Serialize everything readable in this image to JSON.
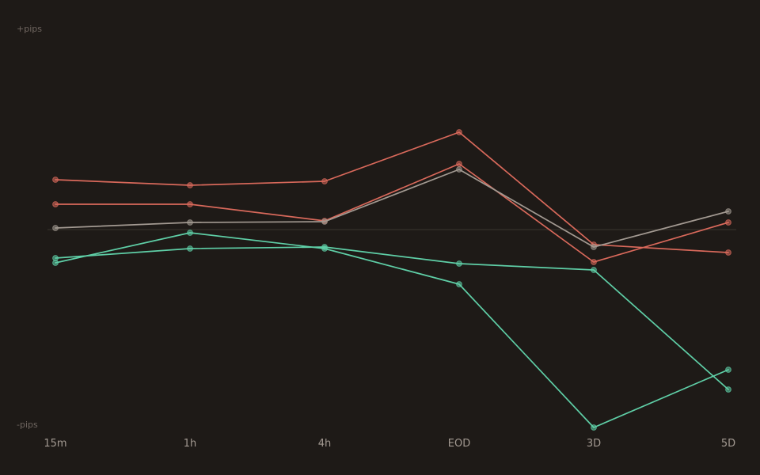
{
  "chart_data": {
    "type": "line",
    "title": "",
    "xlabel": "",
    "ylabel": "",
    "y_top_label": "+pips",
    "y_bottom_label": "-pips",
    "categories": [
      "15m",
      "1h",
      "4h",
      "EOD",
      "3D",
      "5D"
    ],
    "ylim": [
      -100,
      100
    ],
    "zero_line": 0,
    "grid": false,
    "legend": "none",
    "series": [
      {
        "color": "#d9695b",
        "values": [
          25.2,
          22.4,
          24.4,
          49.2,
          -7.6,
          -11.6
        ]
      },
      {
        "color": "#d9695b",
        "values": [
          12.8,
          12.8,
          4.4,
          33.2,
          -16.4,
          3.6
        ]
      },
      {
        "color": "#a39a92",
        "values": [
          0.8,
          3.6,
          4.0,
          30.4,
          -8.8,
          9.2
        ]
      },
      {
        "color": "#5fcfa7",
        "values": [
          -14.4,
          -9.6,
          -8.8,
          -17.2,
          -20.4,
          -80.8
        ]
      },
      {
        "color": "#5fcfa7",
        "values": [
          -16.8,
          -1.6,
          -9.6,
          -27.6,
          -100.0,
          -70.8
        ]
      }
    ],
    "colors": {
      "background": "#1e1a17",
      "zero_line": "#36302b",
      "axis_caption": "#6f6660",
      "tick_label": "#a39a92"
    }
  }
}
